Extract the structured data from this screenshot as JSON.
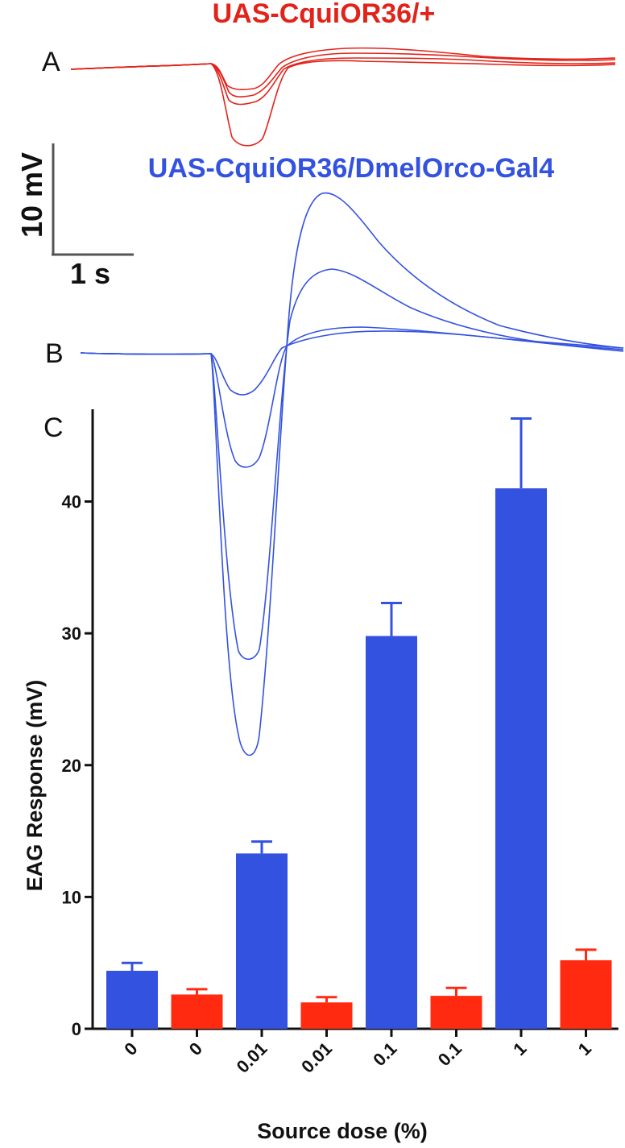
{
  "panels": {
    "a": "A",
    "b": "B",
    "c": "C"
  },
  "traces": {
    "red_title": "UAS-CquiOR36/+",
    "blue_title": "UAS-CquiOR36/DmelOrco-Gal4",
    "red_color": "#e2231a",
    "blue_color": "#3452e0"
  },
  "scale_bar": {
    "vertical_label": "10 mV",
    "horizontal_label": "1 s"
  },
  "chart_data": {
    "type": "bar",
    "categories": [
      "0",
      "0",
      "0.01",
      "0.01",
      "0.1",
      "0.1",
      "1",
      "1"
    ],
    "values": [
      4.4,
      2.6,
      13.3,
      2.0,
      29.8,
      2.5,
      41.0,
      5.2
    ],
    "errors": [
      0.6,
      0.4,
      0.9,
      0.4,
      2.5,
      0.6,
      5.3,
      0.8
    ],
    "bar_colors": [
      "#3452e0",
      "#ff2a10",
      "#3452e0",
      "#ff2a10",
      "#3452e0",
      "#ff2a10",
      "#3452e0",
      "#ff2a10"
    ],
    "xlabel": "Source dose (%)",
    "ylabel": "EAG Response (mV)",
    "yticks": [
      0,
      10,
      20,
      30,
      40
    ],
    "ylim": [
      0,
      47
    ]
  }
}
